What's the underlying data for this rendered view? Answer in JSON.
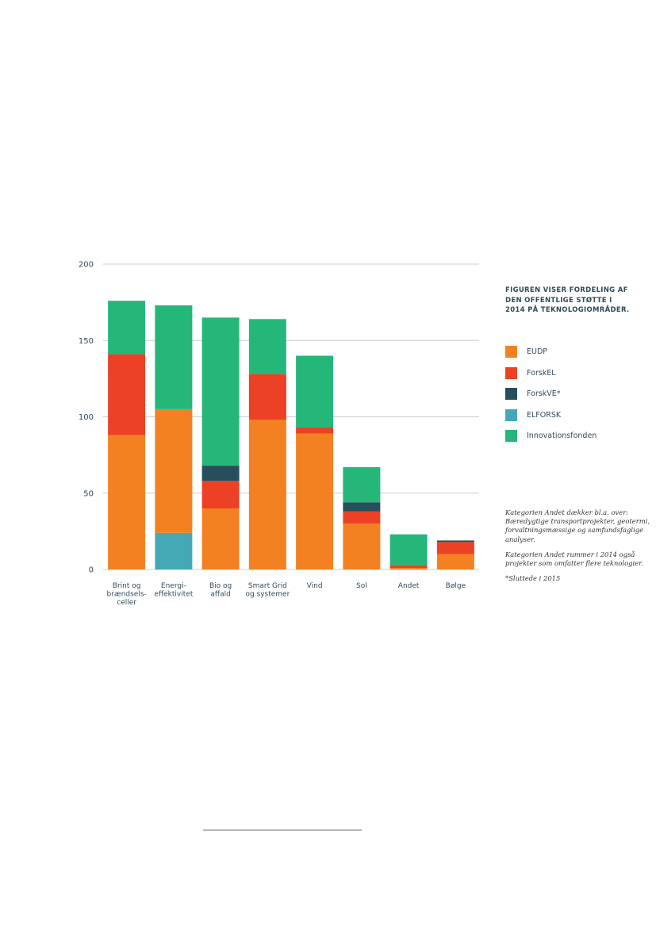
{
  "chart_data": {
    "type": "bar",
    "stacked": true,
    "categories": [
      "Brint og brændsels-celler",
      "Energi-effektivitet",
      "Bio og affald",
      "Smart Grid og systemer",
      "Vind",
      "Sol",
      "Andet",
      "Bølge"
    ],
    "category_lines": [
      [
        "Brint og",
        "brændsels-",
        "celler"
      ],
      [
        "Energi-",
        "effektivitet"
      ],
      [
        "Bio og",
        "affald"
      ],
      [
        "Smart Grid",
        "og systemer"
      ],
      [
        "Vind"
      ],
      [
        "Sol"
      ],
      [
        "Andet"
      ],
      [
        "Bølge"
      ]
    ],
    "series": [
      {
        "name": "ELFORSK",
        "color": "#44a9b5",
        "values": [
          0,
          24,
          0,
          0,
          0,
          0,
          0,
          0
        ]
      },
      {
        "name": "EUDP",
        "color": "#f38121",
        "values": [
          88,
          81,
          40,
          98,
          89,
          30,
          1,
          10
        ]
      },
      {
        "name": "ForskEL",
        "color": "#ec4125",
        "values": [
          53,
          0,
          18,
          30,
          4,
          8,
          2,
          8
        ]
      },
      {
        "name": "ForskVE*",
        "color": "#264e5d",
        "values": [
          0,
          0,
          10,
          0,
          0,
          6,
          0,
          1
        ]
      },
      {
        "name": "Innovationsfonden",
        "color": "#25b67a",
        "values": [
          35,
          68,
          97,
          36,
          47,
          23,
          20,
          0
        ]
      }
    ],
    "yticks": [
      0,
      50,
      100,
      150,
      200
    ],
    "ylim": [
      0,
      200
    ],
    "grid": true,
    "xlabel": "",
    "ylabel": ""
  },
  "legend": {
    "title_lines": [
      "FIGUREN VISER FORDELING AF",
      "DEN OFFENTLIGE STØTTE I",
      "2014 PÅ TEKNOLOGIOMRÅDER."
    ],
    "items": [
      {
        "label": "EUDP",
        "color": "#f38121"
      },
      {
        "label": "ForskEL",
        "color": "#ec4125"
      },
      {
        "label": "ForskVE*",
        "color": "#264e5d"
      },
      {
        "label": "ELFORSK",
        "color": "#44a9b5"
      },
      {
        "label": "Innovationsfonden",
        "color": "#25b67a"
      }
    ]
  },
  "notes": {
    "andet_covers": "Kategorien Andet dækker bl.a. over: Bæredygtige transportprojekter, geotermi, forvaltningsmæssige og samfundsfaglige analyser.",
    "andet_2014": "Kategorien Andet rummer i 2014 også projekter som omfatter flere teknologier.",
    "footnote": "*Sluttede i 2015"
  }
}
